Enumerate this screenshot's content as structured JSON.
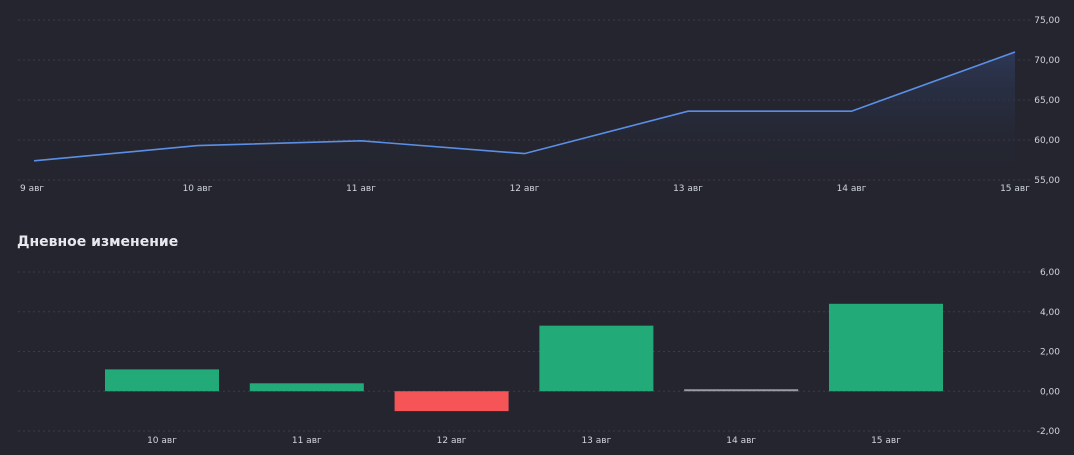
{
  "section_title": "Дневное изменение",
  "colors": {
    "line": "#5b8fe6",
    "area_top": "#2e3a5a",
    "up": "#22ab78",
    "down": "#f65557",
    "flat": "#9a9ca5",
    "grid": "#3a3c48",
    "text": "#d1d4dc"
  },
  "chart_data": [
    {
      "type": "area",
      "x": [
        "9 авг",
        "10 авг",
        "11 авг",
        "12 авг",
        "13 авг",
        "14 авг",
        "15 авг"
      ],
      "values": [
        57.4,
        59.3,
        59.9,
        58.3,
        63.6,
        63.6,
        71.0
      ],
      "ylim": [
        55,
        75
      ],
      "yticks": [
        "55,00",
        "60,00",
        "65,00",
        "70,00",
        "75,00"
      ],
      "ytick_values": [
        55,
        60,
        65,
        70,
        75
      ],
      "grid": true
    },
    {
      "type": "bar",
      "title": "Дневное изменение",
      "categories": [
        "10 авг",
        "11 авг",
        "12 авг",
        "13 авг",
        "14 авг",
        "15 авг"
      ],
      "values": [
        1.1,
        0.4,
        -1.0,
        3.3,
        0.05,
        4.4
      ],
      "ylim": [
        -2,
        6
      ],
      "yticks": [
        "-2,00",
        "0,00",
        "2,00",
        "4,00",
        "6,00"
      ],
      "ytick_values": [
        -2,
        0,
        2,
        4,
        6
      ],
      "grid": true
    }
  ]
}
